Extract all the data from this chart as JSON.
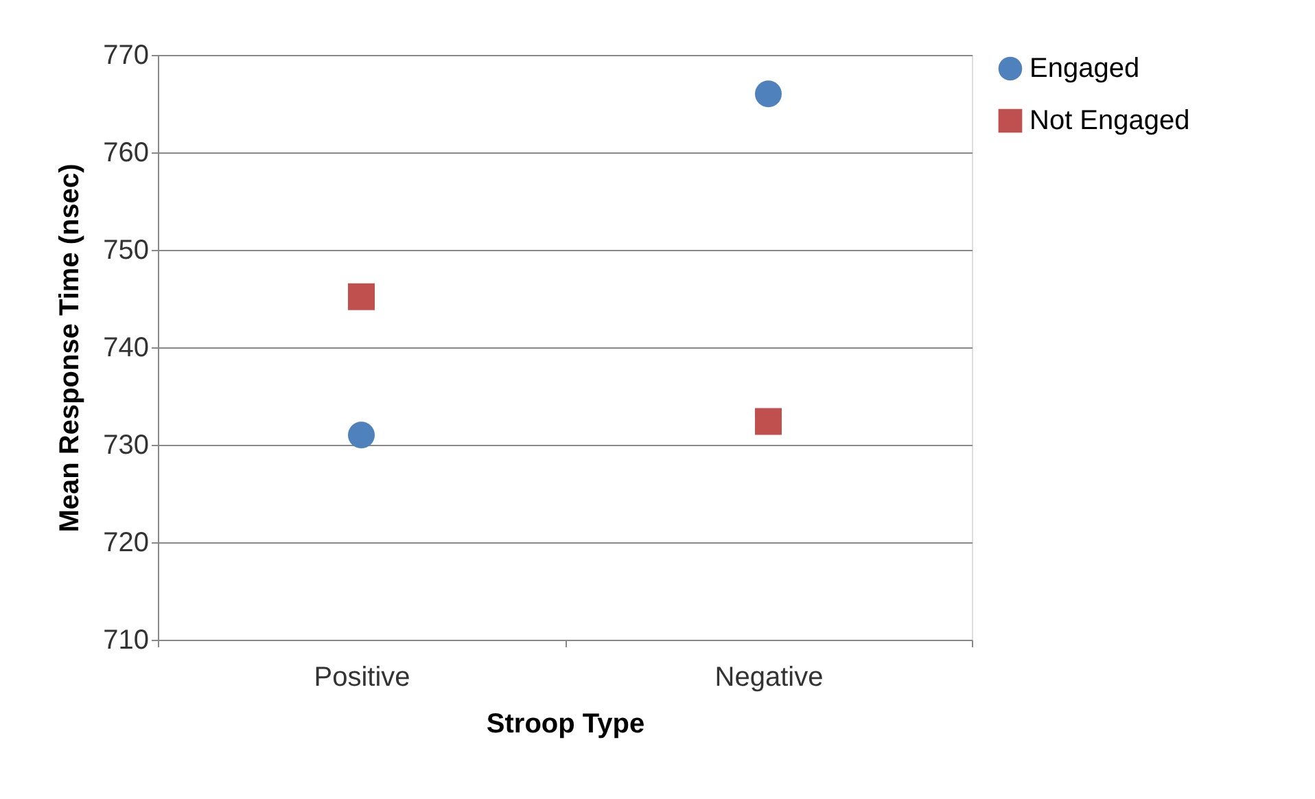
{
  "chart_data": {
    "type": "scatter",
    "xlabel": "Stroop Type",
    "ylabel": "Mean Response Time (nsec)",
    "categories": [
      "Positive",
      "Negative"
    ],
    "series": [
      {
        "name": "Engaged",
        "color": "#4f81bd",
        "marker": "circle",
        "values": [
          731.0,
          766.0
        ]
      },
      {
        "name": "Not Engaged",
        "color": "#c0504d",
        "marker": "square",
        "values": [
          745.2,
          732.4
        ]
      }
    ],
    "ylim": [
      710,
      770
    ],
    "yticks": [
      710,
      720,
      730,
      740,
      750,
      760,
      770
    ],
    "grid": "y",
    "legend": "right"
  }
}
